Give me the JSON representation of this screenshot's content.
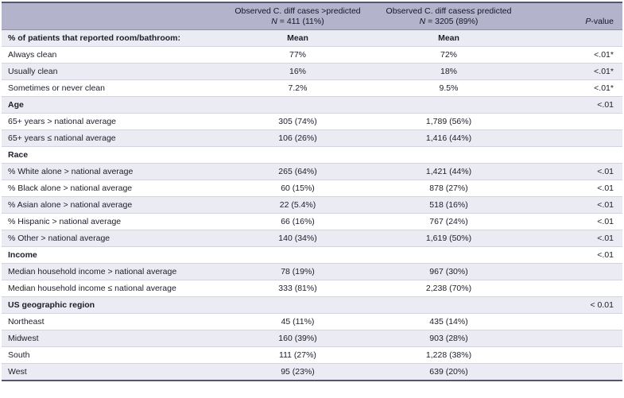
{
  "header": {
    "col_greater": {
      "line1": "Observed C. diff cases >predicted",
      "n_italic": "N",
      "n_rest": " = 411 (11%)"
    },
    "col_less": {
      "line1": "Observed C. diff cases≤ predicted",
      "n_italic": "N",
      "n_rest": " = 3205 (89%)"
    },
    "p_italic": "P",
    "p_rest": "-value"
  },
  "colors": {
    "header_bg": "#b3b3cb",
    "stripe_bg": "#ebebf3",
    "row_bg": "#ffffff",
    "rule_dark": "#55556b"
  },
  "rows": [
    {
      "label": "% of patients that reported room/bathroom:",
      "greater": "Mean",
      "less": "Mean",
      "p": ""
    },
    {
      "label": "Always clean",
      "greater": "77%",
      "less": "72%",
      "p": "<.01*"
    },
    {
      "label": "Usually clean",
      "greater": "16%",
      "less": "18%",
      "p": "<.01*"
    },
    {
      "label": "Sometimes or never clean",
      "greater": "7.2%",
      "less": "9.5%",
      "p": "<.01*"
    },
    {
      "label": "Age",
      "greater": "",
      "less": "",
      "p": "<.01"
    },
    {
      "label": "65+ years > national average",
      "greater": "305 (74%)",
      "less": "1,789 (56%)",
      "p": ""
    },
    {
      "label": "65+ years ≤ national average",
      "greater": "106 (26%)",
      "less": "1,416 (44%)",
      "p": ""
    },
    {
      "label": "Race",
      "greater": "",
      "less": "",
      "p": ""
    },
    {
      "label": "% White alone > national average",
      "greater": "265 (64%)",
      "less": "1,421 (44%)",
      "p": "<.01"
    },
    {
      "label": "% Black alone > national average",
      "greater": "60 (15%)",
      "less": "878 (27%)",
      "p": "<.01"
    },
    {
      "label": "% Asian alone > national average",
      "greater": "22 (5.4%)",
      "less": "518 (16%)",
      "p": "<.01"
    },
    {
      "label": "% Hispanic > national average",
      "greater": "66 (16%)",
      "less": "767 (24%)",
      "p": "<.01"
    },
    {
      "label": "% Other > national average",
      "greater": "140 (34%)",
      "less": "1,619 (50%)",
      "p": "<.01"
    },
    {
      "label": "Income",
      "greater": "",
      "less": "",
      "p": "<.01"
    },
    {
      "label": "Median household income > national average",
      "greater": "78 (19%)",
      "less": "967 (30%)",
      "p": ""
    },
    {
      "label": "Median household income ≤ national average",
      "greater": "333 (81%)",
      "less": "2,238 (70%)",
      "p": ""
    },
    {
      "label": "US geographic region",
      "greater": "",
      "less": "",
      "p": "< 0.01"
    },
    {
      "label": "Northeast",
      "greater": "45 (11%)",
      "less": "435 (14%)",
      "p": ""
    },
    {
      "label": "Midwest",
      "greater": "160 (39%)",
      "less": "903 (28%)",
      "p": ""
    },
    {
      "label": "South",
      "greater": "111 (27%)",
      "less": "1,228 (38%)",
      "p": ""
    },
    {
      "label": "West",
      "greater": "95 (23%)",
      "less": "639 (20%)",
      "p": ""
    }
  ]
}
